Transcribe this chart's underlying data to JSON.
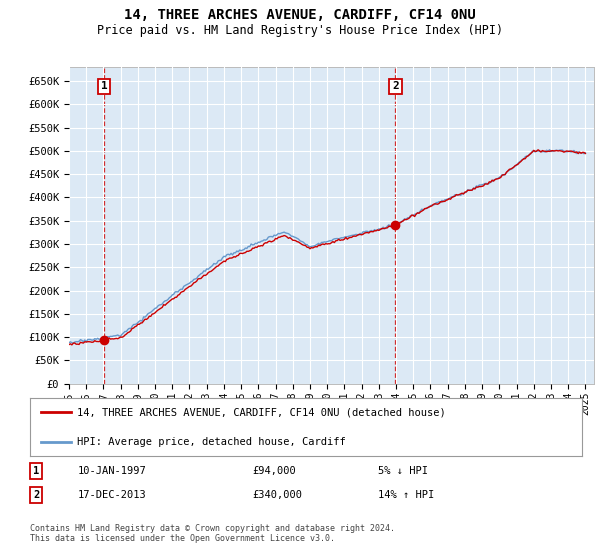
{
  "title_line1": "14, THREE ARCHES AVENUE, CARDIFF, CF14 0NU",
  "title_line2": "Price paid vs. HM Land Registry's House Price Index (HPI)",
  "background_color": "#dce9f5",
  "plot_bg_color": "#dce9f5",
  "fig_bg_color": "#ffffff",
  "grid_color": "#ffffff",
  "ylim": [
    0,
    680000
  ],
  "yticks": [
    0,
    50000,
    100000,
    150000,
    200000,
    250000,
    300000,
    350000,
    400000,
    450000,
    500000,
    550000,
    600000,
    650000
  ],
  "ytick_labels": [
    "£0",
    "£50K",
    "£100K",
    "£150K",
    "£200K",
    "£250K",
    "£300K",
    "£350K",
    "£400K",
    "£450K",
    "£500K",
    "£550K",
    "£600K",
    "£650K"
  ],
  "xlim_start": 1995.0,
  "xlim_end": 2025.5,
  "sale1_x": 1997.033,
  "sale1_y": 94000,
  "sale1_label": "1",
  "sale1_date": "10-JAN-1997",
  "sale1_price": "£94,000",
  "sale1_hpi": "5% ↓ HPI",
  "sale2_x": 2013.96,
  "sale2_y": 340000,
  "sale2_label": "2",
  "sale2_date": "17-DEC-2013",
  "sale2_price": "£340,000",
  "sale2_hpi": "14% ↑ HPI",
  "line1_color": "#cc0000",
  "line2_color": "#6699cc",
  "legend_label1": "14, THREE ARCHES AVENUE, CARDIFF, CF14 0NU (detached house)",
  "legend_label2": "HPI: Average price, detached house, Cardiff",
  "footer": "Contains HM Land Registry data © Crown copyright and database right 2024.\nThis data is licensed under the Open Government Licence v3.0.",
  "xticks": [
    1995,
    1996,
    1997,
    1998,
    1999,
    2000,
    2001,
    2002,
    2003,
    2004,
    2005,
    2006,
    2007,
    2008,
    2009,
    2010,
    2011,
    2012,
    2013,
    2014,
    2015,
    2016,
    2017,
    2018,
    2019,
    2020,
    2021,
    2022,
    2023,
    2024,
    2025
  ]
}
